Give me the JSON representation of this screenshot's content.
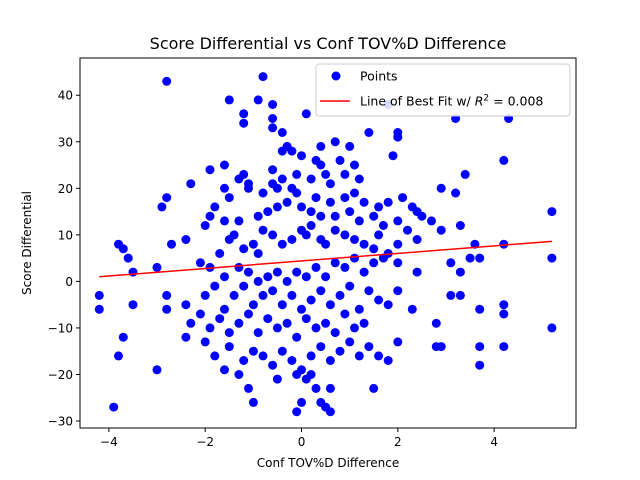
{
  "chart_data": {
    "type": "scatter",
    "title": "Score Differential vs Conf TOV%D Difference",
    "xlabel": "Conf TOV%D Difference",
    "ylabel": "Score Differential",
    "xlim": [
      -4.6,
      5.7
    ],
    "ylim": [
      -31.5,
      48
    ],
    "xticks": [
      -4,
      -2,
      0,
      2,
      4
    ],
    "yticks": [
      -30,
      -20,
      -10,
      0,
      10,
      20,
      30,
      40
    ],
    "xtick_labels": [
      "−4",
      "−2",
      "0",
      "2",
      "4"
    ],
    "ytick_labels": [
      "−30",
      "−20",
      "−10",
      "0",
      "10",
      "20",
      "30",
      "40"
    ],
    "legend_position": "upper right",
    "colors": {
      "points": "#0000ff",
      "fit_line": "#ff0000"
    },
    "series": [
      {
        "name": "Points",
        "kind": "scatter",
        "points": [
          [
            -2.8,
            43
          ],
          [
            -0.8,
            44
          ],
          [
            -1.5,
            39
          ],
          [
            -0.9,
            39
          ],
          [
            -0.6,
            38
          ],
          [
            -1.2,
            36
          ],
          [
            -0.6,
            35
          ],
          [
            -1.2,
            34
          ],
          [
            -0.6,
            33
          ],
          [
            -0.4,
            32
          ],
          [
            -0.3,
            29
          ],
          [
            -0.4,
            28
          ],
          [
            -0.2,
            28
          ],
          [
            0.4,
            29
          ],
          [
            0.7,
            30
          ],
          [
            1.0,
            29
          ],
          [
            1.4,
            32
          ],
          [
            2.0,
            32
          ],
          [
            2.0,
            31
          ],
          [
            3.2,
            35
          ],
          [
            4.3,
            35
          ],
          [
            0.1,
            36
          ],
          [
            1.8,
            38
          ],
          [
            -1.6,
            25
          ],
          [
            -1.9,
            24
          ],
          [
            -1.2,
            23
          ],
          [
            -1.3,
            22
          ],
          [
            -1.1,
            21
          ],
          [
            -0.4,
            22
          ],
          [
            -0.6,
            24
          ],
          [
            0.0,
            27
          ],
          [
            0.3,
            26
          ],
          [
            0.4,
            25
          ],
          [
            0.8,
            26
          ],
          [
            1.1,
            25
          ],
          [
            0.9,
            23
          ],
          [
            1.2,
            22
          ],
          [
            0.5,
            23
          ],
          [
            0.6,
            21
          ],
          [
            0.2,
            22
          ],
          [
            -0.1,
            23
          ],
          [
            -0.6,
            21
          ],
          [
            -0.2,
            20
          ],
          [
            1.9,
            27
          ],
          [
            2.9,
            20
          ],
          [
            3.2,
            19
          ],
          [
            3.4,
            23
          ],
          [
            4.2,
            26
          ],
          [
            -2.3,
            21
          ],
          [
            -2.8,
            18
          ],
          [
            -2.9,
            16
          ],
          [
            -1.6,
            20
          ],
          [
            -1.5,
            18
          ],
          [
            -1.1,
            20
          ],
          [
            -0.8,
            19
          ],
          [
            -0.5,
            20
          ],
          [
            -0.1,
            19
          ],
          [
            0.3,
            18
          ],
          [
            0.6,
            17
          ],
          [
            0.9,
            18
          ],
          [
            1.1,
            19
          ],
          [
            1.3,
            17
          ],
          [
            1.6,
            16
          ],
          [
            1.8,
            17
          ],
          [
            2.1,
            18
          ],
          [
            2.3,
            16
          ],
          [
            2.4,
            15
          ],
          [
            2.5,
            14
          ],
          [
            2.7,
            13
          ],
          [
            -1.8,
            16
          ],
          [
            -1.9,
            14
          ],
          [
            -2.0,
            12
          ],
          [
            -1.6,
            13
          ],
          [
            -1.3,
            13
          ],
          [
            -0.9,
            14
          ],
          [
            -0.7,
            15
          ],
          [
            -0.5,
            16
          ],
          [
            -0.3,
            17
          ],
          [
            0.0,
            16
          ],
          [
            0.2,
            15
          ],
          [
            0.4,
            14
          ],
          [
            0.7,
            14
          ],
          [
            1.0,
            15
          ],
          [
            1.2,
            13
          ],
          [
            1.5,
            14
          ],
          [
            1.7,
            12
          ],
          [
            2.0,
            13
          ],
          [
            2.2,
            11
          ],
          [
            2.4,
            9
          ],
          [
            2.9,
            11
          ],
          [
            3.3,
            12
          ],
          [
            3.6,
            8
          ],
          [
            5.2,
            15
          ],
          [
            -3.8,
            8
          ],
          [
            -3.7,
            7
          ],
          [
            -3.6,
            5
          ],
          [
            -3.5,
            2
          ],
          [
            -2.7,
            8
          ],
          [
            -2.4,
            9
          ],
          [
            -2.1,
            4
          ],
          [
            -1.9,
            3
          ],
          [
            -1.7,
            6
          ],
          [
            -1.5,
            9
          ],
          [
            -1.4,
            10
          ],
          [
            -1.2,
            7
          ],
          [
            -1.0,
            8
          ],
          [
            -0.9,
            6
          ],
          [
            -0.8,
            11
          ],
          [
            -0.6,
            10
          ],
          [
            -0.4,
            8
          ],
          [
            -0.2,
            9
          ],
          [
            0.0,
            11
          ],
          [
            0.1,
            10
          ],
          [
            0.2,
            12
          ],
          [
            0.4,
            9
          ],
          [
            0.5,
            8
          ],
          [
            0.7,
            11
          ],
          [
            0.9,
            10
          ],
          [
            1.1,
            9
          ],
          [
            1.3,
            8
          ],
          [
            1.5,
            7
          ],
          [
            1.6,
            10
          ],
          [
            1.8,
            6
          ],
          [
            2.0,
            8
          ],
          [
            -1.6,
            1
          ],
          [
            -1.3,
            3
          ],
          [
            -1.1,
            2
          ],
          [
            -0.9,
            0
          ],
          [
            -0.7,
            1
          ],
          [
            -0.5,
            2
          ],
          [
            -0.3,
            0
          ],
          [
            -0.1,
            2
          ],
          [
            0.1,
            1
          ],
          [
            0.3,
            3
          ],
          [
            0.5,
            1
          ],
          [
            0.7,
            4
          ],
          [
            0.9,
            3
          ],
          [
            1.1,
            5
          ],
          [
            1.3,
            2
          ],
          [
            1.5,
            4
          ],
          [
            1.7,
            5
          ],
          [
            2.0,
            4
          ],
          [
            2.4,
            2
          ],
          [
            3.1,
            4
          ],
          [
            3.3,
            2
          ],
          [
            3.5,
            5
          ],
          [
            3.7,
            5
          ],
          [
            4.2,
            8
          ],
          [
            5.2,
            5
          ],
          [
            -3.0,
            3
          ],
          [
            -2.8,
            -3
          ],
          [
            -2.4,
            -5
          ],
          [
            -2.0,
            -3
          ],
          [
            -1.8,
            -1
          ],
          [
            -1.6,
            -6
          ],
          [
            -1.4,
            -3
          ],
          [
            -1.2,
            -1
          ],
          [
            -1.0,
            -5
          ],
          [
            -0.8,
            -3
          ],
          [
            -0.6,
            -2
          ],
          [
            -0.4,
            -5
          ],
          [
            -0.2,
            -3
          ],
          [
            0.0,
            -6
          ],
          [
            0.2,
            -4
          ],
          [
            0.4,
            -2
          ],
          [
            0.6,
            -5
          ],
          [
            0.8,
            -3
          ],
          [
            1.0,
            -1
          ],
          [
            1.2,
            -6
          ],
          [
            1.4,
            -2
          ],
          [
            1.6,
            -4
          ],
          [
            1.8,
            -5
          ],
          [
            2.0,
            -2
          ],
          [
            2.3,
            -6
          ],
          [
            3.1,
            -3
          ],
          [
            3.3,
            -3
          ],
          [
            3.7,
            -6
          ],
          [
            4.2,
            -5
          ],
          [
            4.2,
            -7
          ],
          [
            -4.2,
            -3
          ],
          [
            -4.2,
            -6
          ],
          [
            -3.5,
            -5
          ],
          [
            -2.8,
            -6
          ],
          [
            -2.3,
            -9
          ],
          [
            -2.1,
            -7
          ],
          [
            -1.9,
            -10
          ],
          [
            -1.7,
            -8
          ],
          [
            -1.5,
            -11
          ],
          [
            -1.3,
            -9
          ],
          [
            -1.1,
            -7
          ],
          [
            -0.9,
            -11
          ],
          [
            -0.7,
            -8
          ],
          [
            -0.5,
            -10
          ],
          [
            -0.3,
            -9
          ],
          [
            -0.1,
            -12
          ],
          [
            0.1,
            -8
          ],
          [
            0.3,
            -10
          ],
          [
            0.5,
            -9
          ],
          [
            0.7,
            -11
          ],
          [
            0.9,
            -7
          ],
          [
            1.1,
            -10
          ],
          [
            1.3,
            -9
          ],
          [
            2.8,
            -9
          ],
          [
            -3.7,
            -12
          ],
          [
            -3.8,
            -16
          ],
          [
            -2.4,
            -12
          ],
          [
            -2.0,
            -13
          ],
          [
            -1.8,
            -16
          ],
          [
            -1.5,
            -14
          ],
          [
            -1.2,
            -17
          ],
          [
            -1.0,
            -15
          ],
          [
            -0.8,
            -16
          ],
          [
            -0.6,
            -18
          ],
          [
            -0.4,
            -15
          ],
          [
            -0.2,
            -17
          ],
          [
            0.0,
            -19
          ],
          [
            0.2,
            -16
          ],
          [
            0.4,
            -14
          ],
          [
            0.6,
            -17
          ],
          [
            0.8,
            -15
          ],
          [
            1.0,
            -13
          ],
          [
            1.2,
            -16
          ],
          [
            1.4,
            -14
          ],
          [
            1.6,
            -16
          ],
          [
            1.8,
            -17
          ],
          [
            2.0,
            -13
          ],
          [
            2.8,
            -14
          ],
          [
            2.9,
            -14
          ],
          [
            3.7,
            -14
          ],
          [
            3.7,
            -18
          ],
          [
            4.2,
            -14
          ],
          [
            5.2,
            -10
          ],
          [
            -3.0,
            -19
          ],
          [
            -1.6,
            -19
          ],
          [
            -1.3,
            -20
          ],
          [
            -1.1,
            -23
          ],
          [
            -1.0,
            -26
          ],
          [
            -0.5,
            -21
          ],
          [
            -0.1,
            -20
          ],
          [
            0.1,
            -21
          ],
          [
            0.3,
            -23
          ],
          [
            0.5,
            -27
          ],
          [
            0.6,
            -28
          ],
          [
            0.4,
            -26
          ],
          [
            0.6,
            -23
          ],
          [
            0.2,
            -20
          ],
          [
            0.0,
            -26
          ],
          [
            -0.1,
            -28
          ],
          [
            1.5,
            -23
          ],
          [
            -3.9,
            -27
          ]
        ]
      },
      {
        "name": "Line of Best Fit w/ $R^2 = 0.008$",
        "legend_text": "Line of Best Fit w/ ",
        "legend_r2_label": "R",
        "legend_r2_power": "2",
        "legend_r2_value": " = 0.008",
        "kind": "line",
        "points": [
          [
            -4.2,
            1.0
          ],
          [
            5.2,
            8.6
          ]
        ]
      }
    ]
  }
}
